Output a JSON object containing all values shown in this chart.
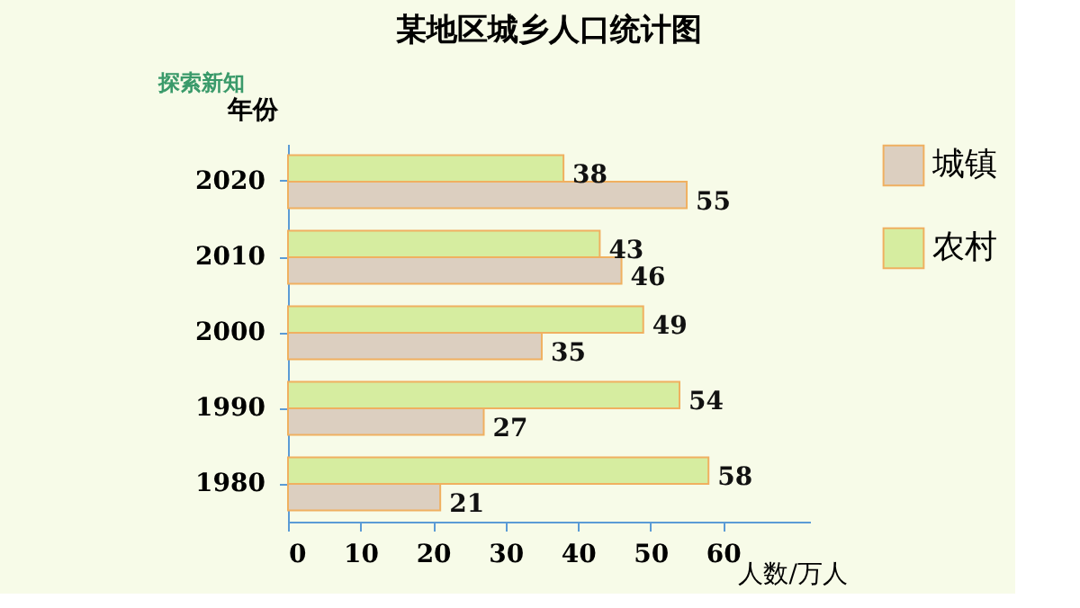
{
  "chart_data": {
    "type": "bar",
    "orientation": "horizontal",
    "title": "某地区城乡人口统计图",
    "annotations": [
      "探索新知"
    ],
    "xlabel": "人数/万人",
    "ylabel": "年份",
    "categories": [
      "2020",
      "2010",
      "2000",
      "1990",
      "1980"
    ],
    "series": [
      {
        "name": "城镇",
        "color": "#dccfc0",
        "values": [
          55,
          46,
          35,
          27,
          21
        ]
      },
      {
        "name": "农村",
        "color": "#d6eda0",
        "values": [
          38,
          43,
          49,
          54,
          58
        ]
      }
    ],
    "xlim": [
      0,
      72
    ],
    "xticks": [
      0,
      10,
      20,
      30,
      40,
      50,
      60
    ],
    "data_labels": true,
    "legend": "right",
    "grid": false
  }
}
